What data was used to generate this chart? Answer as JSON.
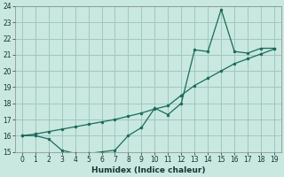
{
  "title": "",
  "xlabel": "Humidex (Indice chaleur)",
  "background_color": "#c8e8e0",
  "grid_color": "#a0c8c0",
  "line_color": "#1a6b5a",
  "x_line1": [
    0,
    1,
    2,
    3,
    4,
    5,
    6,
    7,
    8,
    9,
    10,
    11,
    12,
    13,
    14,
    15,
    16,
    17,
    18,
    19
  ],
  "y_line1": [
    16.0,
    16.0,
    15.8,
    15.1,
    14.9,
    14.9,
    15.0,
    15.1,
    16.0,
    16.5,
    17.7,
    17.3,
    18.0,
    21.3,
    21.2,
    23.8,
    21.2,
    21.1,
    21.4,
    21.4
  ],
  "x_line2": [
    0,
    1,
    2,
    3,
    4,
    5,
    6,
    7,
    8,
    9,
    10,
    11,
    12,
    13,
    14,
    15,
    16,
    17,
    18,
    19
  ],
  "y_line2": [
    16.0,
    16.1,
    16.25,
    16.4,
    16.55,
    16.7,
    16.85,
    17.0,
    17.2,
    17.4,
    17.65,
    17.85,
    18.5,
    19.1,
    19.55,
    20.0,
    20.45,
    20.75,
    21.05,
    21.35
  ],
  "ylim": [
    15,
    24
  ],
  "xlim": [
    -0.5,
    19.5
  ],
  "yticks": [
    15,
    16,
    17,
    18,
    19,
    20,
    21,
    22,
    23,
    24
  ],
  "xticks": [
    0,
    1,
    2,
    3,
    4,
    5,
    6,
    7,
    8,
    9,
    10,
    11,
    12,
    13,
    14,
    15,
    16,
    17,
    18,
    19
  ],
  "tick_fontsize": 5.5,
  "xlabel_fontsize": 6.5
}
